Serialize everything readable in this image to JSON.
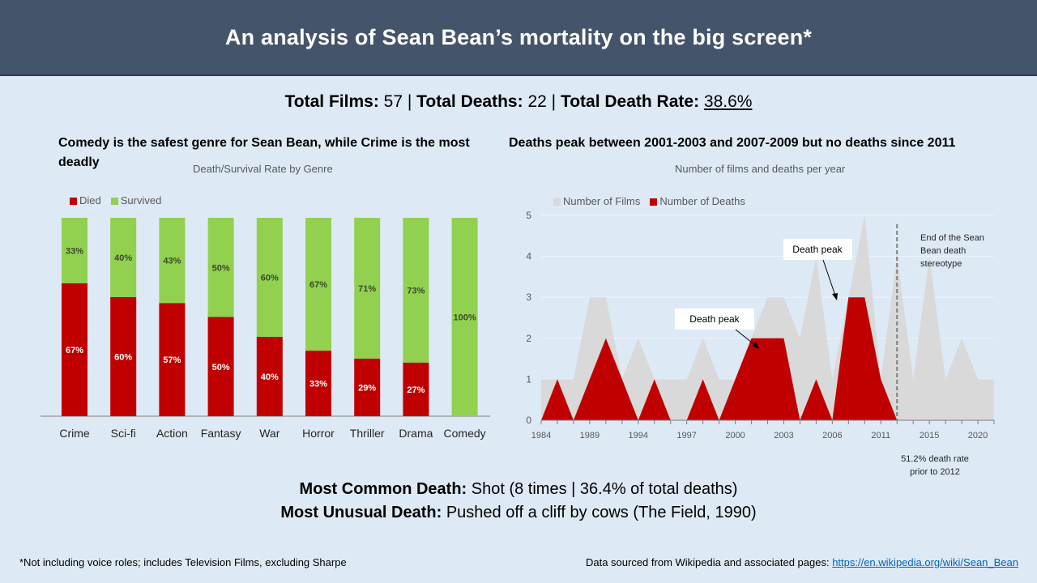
{
  "header": {
    "title": "An analysis of Sean Bean’s mortality on the big screen*"
  },
  "stats": {
    "films_label": "Total Films:",
    "films_value": " 57 | ",
    "deaths_label": "Total Deaths:",
    "deaths_value": " 22 | ",
    "rate_label": "Total Death Rate:",
    "rate_value": "38.6%"
  },
  "left_panel": {
    "headline": "Comedy is the safest genre for Sean Bean, while Crime is the most deadly"
  },
  "right_panel": {
    "headline": "Deaths peak between 2001-2003 and 2007-2009 but no deaths since 2011"
  },
  "facts": {
    "common_label": "Most Common Death:",
    "common_value": " Shot (8 times | 36.4% of total deaths)",
    "unusual_label": "Most Unusual Death:",
    "unusual_value": " Pushed off a cliff by cows (The Field, 1990)"
  },
  "footer": {
    "note": "*Not including voice roles; includes Television Films, excluding Sharpe",
    "source_label": "Data sourced from Wikipedia and associated pages: ",
    "source_link": "https://en.wikipedia.org/wiki/Sean_Bean"
  },
  "colors": {
    "died": "#c00000",
    "survived": "#92d050",
    "films": "#d9d9d9",
    "background": "#dde9f5",
    "header": "#44546a"
  },
  "chart_data": [
    {
      "type": "bar",
      "stacked": true,
      "title": "Death/Survival Rate by Genre",
      "legend_position": "top-left",
      "categories": [
        "Crime",
        "Sci-fi",
        "Action",
        "Fantasy",
        "War",
        "Horror",
        "Thriller",
        "Drama",
        "Comedy"
      ],
      "series": [
        {
          "name": "Died",
          "values": [
            67,
            60,
            57,
            50,
            40,
            33,
            29,
            27,
            0
          ],
          "labels": [
            "67%",
            "60%",
            "57%",
            "50%",
            "40%",
            "33%",
            "29%",
            "27%",
            ""
          ]
        },
        {
          "name": "Survived",
          "values": [
            33,
            40,
            43,
            50,
            60,
            67,
            71,
            73,
            100
          ],
          "labels": [
            "33%",
            "40%",
            "43%",
            "50%",
            "60%",
            "67%",
            "71%",
            "73%",
            "100%"
          ]
        }
      ],
      "ylim": [
        0,
        100
      ],
      "grid": false
    },
    {
      "type": "area",
      "title": "Number of films and deaths per year",
      "legend_position": "top-left",
      "x_tick_labels": [
        "1984",
        "",
        "",
        "1989",
        "",
        "",
        "1994",
        "",
        "",
        "1997",
        "",
        "",
        "2000",
        "",
        "",
        "2003",
        "",
        "",
        "2006",
        "",
        "",
        "2011",
        "",
        "",
        "2015",
        "",
        "",
        "2020",
        ""
      ],
      "series": [
        {
          "name": "Number of Films",
          "values": [
            1,
            1,
            1,
            3,
            3,
            1,
            2,
            1,
            1,
            1,
            2,
            1,
            1,
            2,
            3,
            3,
            2,
            4,
            1,
            3,
            5,
            1,
            4,
            1,
            4,
            1,
            2,
            1,
            1
          ]
        },
        {
          "name": "Number of Deaths",
          "values": [
            0,
            1,
            0,
            1,
            2,
            1,
            0,
            1,
            0,
            0,
            1,
            0,
            1,
            2,
            2,
            2,
            0,
            1,
            0,
            3,
            3,
            1,
            0,
            0,
            0,
            0,
            0,
            0,
            0
          ]
        }
      ],
      "yticks": [
        0,
        1,
        2,
        3,
        4,
        5
      ],
      "ylim": [
        0,
        5
      ],
      "grid": true,
      "annotations": [
        {
          "text": "Death peak",
          "target_index": 13.5
        },
        {
          "text": "Death peak",
          "target_index": 19.5
        },
        {
          "text": "End of the Sean Bean death stereotype",
          "marker": "dashed-line",
          "at_index": 22
        },
        {
          "text": "51.2% death rate prior to 2012"
        }
      ]
    }
  ]
}
